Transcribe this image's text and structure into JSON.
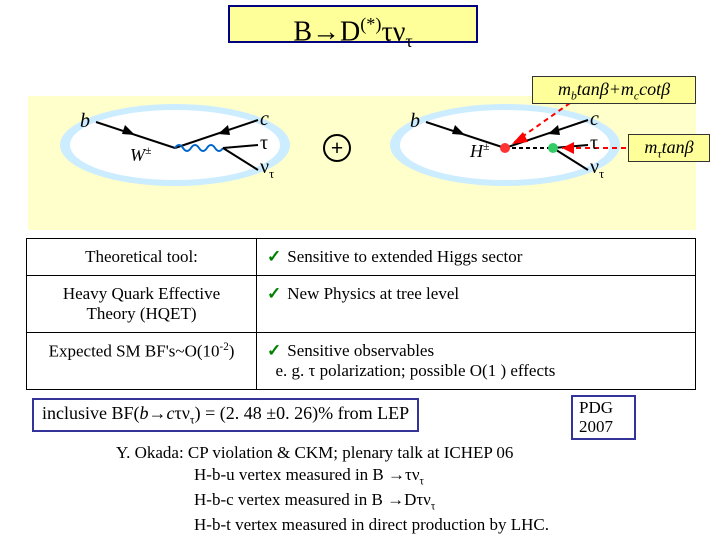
{
  "title_html": "B→D<sup>(*)</sup>τν<sub>τ</sub>",
  "panel": {
    "bg": "#ffffcc",
    "oval_outer": "#ccecff",
    "oval_inner": "#ffffff"
  },
  "plus": "+",
  "left_diagram": {
    "b": "b",
    "c": "c",
    "tau": "τ",
    "nu_html": "ν<sub>τ</sub>",
    "boson_html": "W<sup>±</sup>"
  },
  "right_diagram": {
    "b": "b",
    "c": "c",
    "tau": "τ",
    "nu_html": "ν<sub>τ</sub>",
    "boson_html": "H<sup>±</sup>"
  },
  "formula_top_html": "m<sub>b</sub>tanβ+m<sub>c</sub>cotβ",
  "formula_side_html": "m<sub>τ</sub>tanβ",
  "table": {
    "rows": [
      {
        "left": "Theoretical tool:",
        "right": "Sensitive to extended Higgs sector"
      },
      {
        "left": "Heavy Quark Effective Theory (HQET)",
        "right": "New Physics at tree level"
      },
      {
        "left_html": "Expected SM BF's~O(10<sup>-2</sup>)",
        "right_html": "Sensitive observables<br>&nbsp;&nbsp;e. g. τ polarization; possible O(1 ) effects"
      }
    ]
  },
  "lep_html": "inclusive BF(<i>b</i>→<i>c</i>τν<sub>τ</sub>) = (2. 48 ±0. 26)%  from LEP",
  "pdg": "PDG 2007",
  "footer": {
    "line1": "Y. Okada: CP violation & CKM; plenary talk at ICHEP 06",
    "line2_html": "H-b-u vertex measured in  B →τν<sub>τ</sub>",
    "line3_html": "H-b-c vertex measured in  B →Dτν<sub>τ</sub>",
    "line4": "H-b-t vertex  measured in direct production by LHC."
  },
  "colors": {
    "title_bg": "#ffff99",
    "title_border": "#000080",
    "dashed_arrow": "#ff0000",
    "check": "#008000",
    "box_border": "#333399",
    "dot_red": "#ff3333",
    "dot_green": "#33cc66",
    "line_black": "#000000",
    "w_line": "#0066cc"
  }
}
